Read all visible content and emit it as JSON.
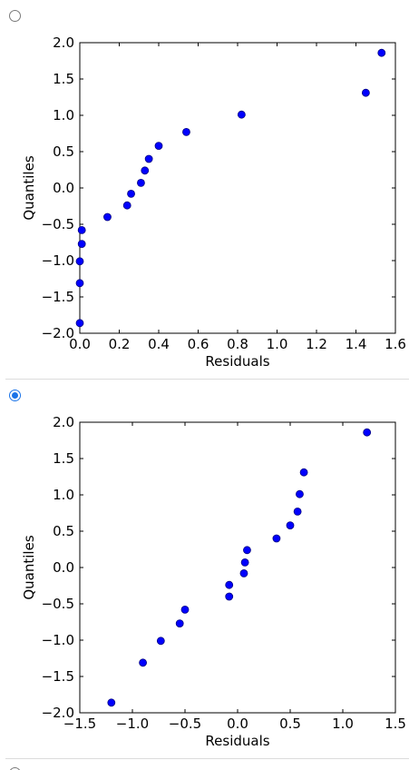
{
  "options": [
    {
      "selected": false
    },
    {
      "selected": true
    },
    {
      "selected": false
    }
  ],
  "colors": {
    "marker": "#0000ff",
    "marker_edge": "#000080",
    "radio_accent": "#1a73e8"
  },
  "chart_data": [
    {
      "type": "scatter",
      "xlabel": "Residuals",
      "ylabel": "Quantiles",
      "xlim": [
        0.0,
        1.6
      ],
      "ylim": [
        -2.0,
        2.0
      ],
      "xticks": [
        "0.0",
        "0.2",
        "0.4",
        "0.6",
        "0.8",
        "1.0",
        "1.2",
        "1.4",
        "1.6"
      ],
      "yticks": [
        "2.0",
        "1.5",
        "1.0",
        "0.5",
        "0.0",
        "−0.5",
        "−1.0",
        "−1.5",
        "−2.0"
      ],
      "xtick_values": [
        0.0,
        0.2,
        0.4,
        0.6,
        0.8,
        1.0,
        1.2,
        1.4,
        1.6
      ],
      "ytick_values": [
        2.0,
        1.5,
        1.0,
        0.5,
        0.0,
        -0.5,
        -1.0,
        -1.5,
        -2.0
      ],
      "x": [
        0.0,
        0.0,
        0.0,
        0.01,
        0.01,
        0.14,
        0.24,
        0.26,
        0.31,
        0.33,
        0.35,
        0.4,
        0.54,
        0.82,
        1.45,
        1.53
      ],
      "y": [
        -1.86,
        -1.31,
        -1.01,
        -0.77,
        -0.58,
        -0.4,
        -0.24,
        -0.08,
        0.07,
        0.24,
        0.4,
        0.58,
        0.77,
        1.01,
        1.31,
        1.86
      ]
    },
    {
      "type": "scatter",
      "xlabel": "Residuals",
      "ylabel": "Quantiles",
      "xlim": [
        -1.5,
        1.5
      ],
      "ylim": [
        -2.0,
        2.0
      ],
      "xticks": [
        "−1.5",
        "−1.0",
        "−0.5",
        "0.0",
        "0.5",
        "1.0",
        "1.5"
      ],
      "yticks": [
        "2.0",
        "1.5",
        "1.0",
        "0.5",
        "0.0",
        "−0.5",
        "−1.0",
        "−1.5",
        "−2.0"
      ],
      "xtick_values": [
        -1.5,
        -1.0,
        -0.5,
        0.0,
        0.5,
        1.0,
        1.5
      ],
      "ytick_values": [
        2.0,
        1.5,
        1.0,
        0.5,
        0.0,
        -0.5,
        -1.0,
        -1.5,
        -2.0
      ],
      "x": [
        -1.2,
        -0.9,
        -0.73,
        -0.55,
        -0.5,
        -0.08,
        -0.08,
        0.06,
        0.07,
        0.09,
        0.37,
        0.5,
        0.57,
        0.59,
        0.63,
        1.23
      ],
      "y": [
        -1.86,
        -1.31,
        -1.01,
        -0.77,
        -0.58,
        -0.4,
        -0.24,
        -0.08,
        0.07,
        0.24,
        0.4,
        0.58,
        0.77,
        1.01,
        1.31,
        1.86
      ]
    }
  ]
}
